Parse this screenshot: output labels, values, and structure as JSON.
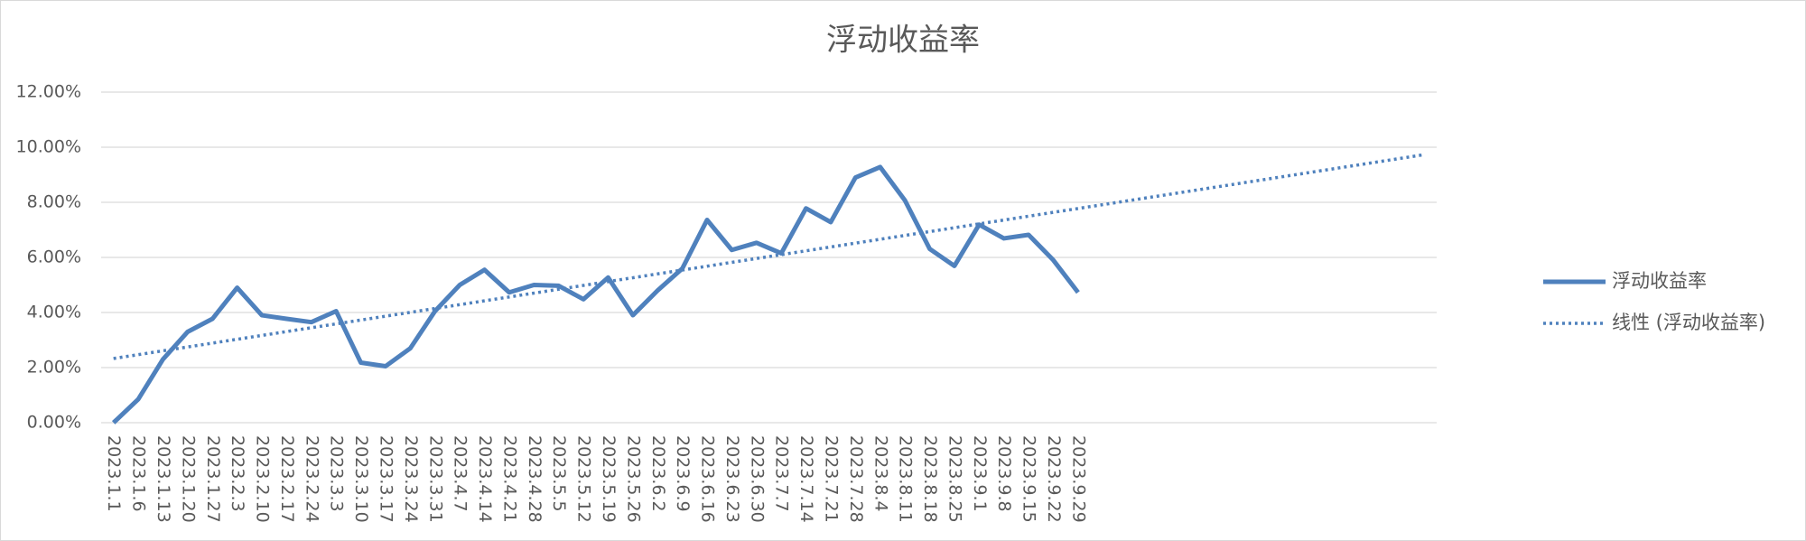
{
  "chart_data": {
    "type": "line",
    "title": "浮动收益率",
    "categories": [
      "2023.1.1",
      "2023.1.6",
      "2023.1.13",
      "2023.1.20",
      "2023.1.27",
      "2023.2.3",
      "2023.2.10",
      "2023.2.17",
      "2023.2.24",
      "2023.3.3",
      "2023.3.10",
      "2023.3.17",
      "2023.3.24",
      "2023.3.31",
      "2023.4.7",
      "2023.4.14",
      "2023.4.21",
      "2023.4.28",
      "2023.5.5",
      "2023.5.12",
      "2023.5.19",
      "2023.5.26",
      "2023.6.2",
      "2023.6.9",
      "2023.6.16",
      "2023.6.23",
      "2023.6.30",
      "2023.7.7",
      "2023.7.14",
      "2023.7.21",
      "2023.7.28",
      "2023.8.4",
      "2023.8.11",
      "2023.8.18",
      "2023.8.25",
      "2023.9.1",
      "2023.9.8",
      "2023.9.15",
      "2023.9.22",
      "2023.9.29",
      null,
      null,
      null,
      null,
      null,
      null,
      null,
      null,
      null,
      null,
      null,
      null,
      null,
      null
    ],
    "series": [
      {
        "name": "浮动收益率",
        "color": "#4f81bd",
        "values": [
          0,
          0.85,
          2.3,
          3.3,
          3.77,
          4.9,
          3.9,
          3.77,
          3.65,
          4.05,
          2.18,
          2.05,
          2.7,
          4.05,
          5.0,
          5.55,
          4.73,
          5.0,
          4.97,
          4.48,
          5.27,
          3.9,
          4.8,
          5.6,
          7.36,
          6.27,
          6.53,
          6.15,
          7.78,
          7.28,
          8.9,
          9.28,
          8.07,
          6.31,
          5.69,
          7.19,
          6.69,
          6.82,
          5.9,
          4.73,
          null,
          null,
          null,
          null,
          null,
          null,
          null,
          null,
          null,
          null,
          null,
          null,
          null,
          null
        ]
      }
    ],
    "trendline": {
      "name": "线性 (浮动收益率)",
      "color": "#4f81bd",
      "start": 2.33,
      "end": 9.73
    },
    "ylim": [
      0,
      12
    ],
    "yticks": [
      {
        "value": 0,
        "label": "0.00%"
      },
      {
        "value": 2,
        "label": "2.00%"
      },
      {
        "value": 4,
        "label": "4.00%"
      },
      {
        "value": 6,
        "label": "6.00%"
      },
      {
        "value": 8,
        "label": "8.00%"
      },
      {
        "value": 10,
        "label": "10.00%"
      },
      {
        "value": 12,
        "label": "12.00%"
      }
    ],
    "grid": true,
    "legend": "right"
  }
}
